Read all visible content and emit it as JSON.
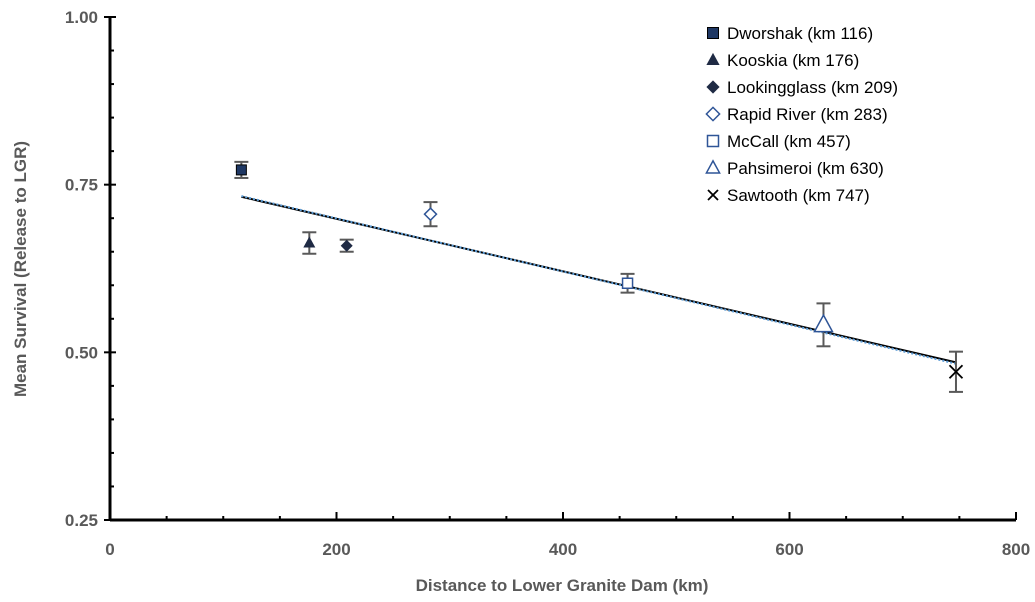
{
  "chart_data": {
    "type": "scatter",
    "title": "",
    "xlabel": "Distance to Lower Granite Dam (km)",
    "ylabel": "Mean Survival (Release to LGR)",
    "xlim": [
      0,
      800
    ],
    "ylim": [
      0.25,
      1.0
    ],
    "x_ticks": [
      0,
      200,
      400,
      600,
      800
    ],
    "x_tick_labels": [
      "0",
      "200",
      "400",
      "600",
      "800"
    ],
    "y_ticks": [
      0.25,
      0.5,
      0.75,
      1.0
    ],
    "y_tick_labels": [
      "0.25",
      "0.50",
      "0.75",
      "1.00"
    ],
    "grid": false,
    "legend_position": "top-right",
    "series": [
      {
        "name": "Dworshak (km 116)",
        "marker": "filled-square",
        "color": "#1f3864",
        "x": [
          116
        ],
        "y": [
          0.772
        ],
        "err": [
          0.012
        ]
      },
      {
        "name": "Kooskia (km 176)",
        "marker": "filled-triangle",
        "color": "#1f2a44",
        "x": [
          176
        ],
        "y": [
          0.663
        ],
        "err": [
          0.016
        ]
      },
      {
        "name": "Lookingglass (km 209)",
        "marker": "filled-diamond",
        "color": "#1f2a44",
        "x": [
          209
        ],
        "y": [
          0.659
        ],
        "err": [
          0.009
        ]
      },
      {
        "name": "Rapid River (km 283)",
        "marker": "open-diamond",
        "color": "#2f5597",
        "x": [
          283
        ],
        "y": [
          0.706
        ],
        "err": [
          0.018
        ]
      },
      {
        "name": "McCall (km 457)",
        "marker": "open-square",
        "color": "#2f5597",
        "x": [
          457
        ],
        "y": [
          0.603
        ],
        "err": [
          0.014
        ]
      },
      {
        "name": "Pahsimeroi (km 630)",
        "marker": "open-triangle",
        "color": "#2f5597",
        "x": [
          630
        ],
        "y": [
          0.541
        ],
        "err": [
          0.032
        ]
      },
      {
        "name": "Sawtooth (km 747)",
        "marker": "x",
        "color": "#000000",
        "x": [
          747
        ],
        "y": [
          0.471
        ],
        "err": [
          0.03
        ]
      }
    ],
    "trendlines": [
      {
        "style": "solid",
        "color": "#000000",
        "x": [
          116,
          747
        ],
        "y": [
          0.732,
          0.485
        ]
      },
      {
        "style": "dotted",
        "color": "#5b9bd5",
        "x": [
          116,
          747
        ],
        "y": [
          0.733,
          0.483
        ]
      }
    ]
  }
}
